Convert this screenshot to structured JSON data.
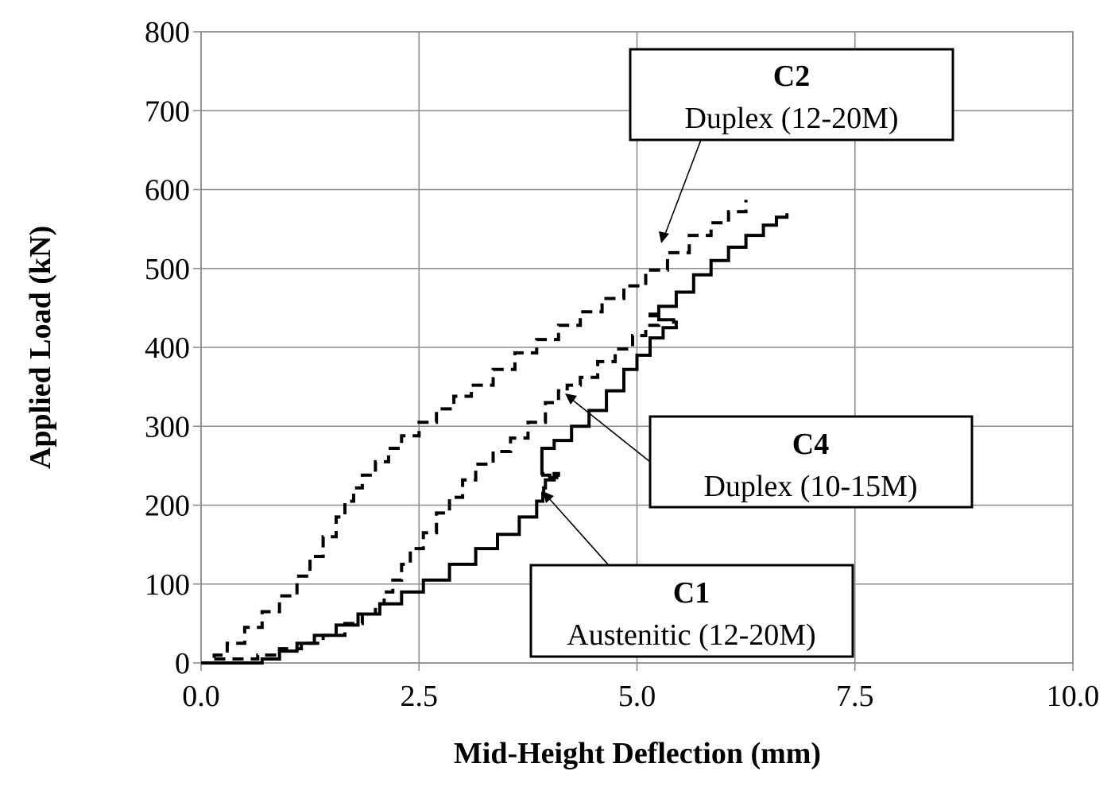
{
  "chart_data": {
    "type": "line",
    "title": "",
    "xlabel": "Mid-Height Deflection (mm)",
    "ylabel": "Applied Load (kN)",
    "xlim": [
      0,
      10
    ],
    "ylim": [
      0,
      800
    ],
    "xticks": [
      "0.0",
      "2.5",
      "5.0",
      "7.5",
      "10.0"
    ],
    "yticks": [
      "0",
      "100",
      "200",
      "300",
      "400",
      "500",
      "600",
      "700",
      "800"
    ],
    "grid": true,
    "series": [
      {
        "name": "C1",
        "description": "Austenitic (12-20M)",
        "style": "solid",
        "x": [
          0.1,
          0.45,
          0.7,
          0.9,
          1.1,
          1.3,
          1.55,
          1.8,
          2.05,
          2.3,
          2.55,
          2.85,
          3.15,
          3.4,
          3.65,
          3.85,
          3.92,
          3.93,
          3.95,
          4.05,
          4.1,
          4.08,
          4.0,
          3.92,
          3.91,
          4.05,
          4.25,
          4.45,
          4.65,
          4.85,
          5.0,
          5.15,
          5.3,
          5.45,
          5.42,
          5.25,
          5.15,
          5.25,
          5.45,
          5.65,
          5.85,
          6.05,
          6.25,
          6.45,
          6.6,
          6.72
        ],
        "y": [
          0,
          0,
          5,
          15,
          25,
          35,
          48,
          62,
          75,
          90,
          105,
          125,
          145,
          163,
          185,
          205,
          215,
          222,
          232,
          240,
          238,
          235,
          238,
          240,
          272,
          282,
          300,
          320,
          345,
          372,
          390,
          412,
          425,
          432,
          435,
          440,
          442,
          452,
          470,
          492,
          510,
          527,
          542,
          555,
          565,
          570
        ]
      },
      {
        "name": "C2",
        "description": "Duplex (12-20M)",
        "style": "dashed",
        "x": [
          0.0,
          0.15,
          0.3,
          0.5,
          0.7,
          0.9,
          1.1,
          1.25,
          1.4,
          1.55,
          1.65,
          1.75,
          1.85,
          2.0,
          2.15,
          2.3,
          2.5,
          2.7,
          2.9,
          3.1,
          3.35,
          3.6,
          3.85,
          4.1,
          4.35,
          4.6,
          4.85,
          5.1,
          5.35,
          5.6,
          5.85,
          6.05,
          6.25
        ],
        "y": [
          0,
          10,
          25,
          45,
          65,
          85,
          110,
          135,
          160,
          185,
          205,
          222,
          238,
          255,
          272,
          288,
          305,
          322,
          338,
          352,
          372,
          393,
          410,
          428,
          445,
          462,
          478,
          498,
          520,
          542,
          558,
          572,
          587
        ]
      },
      {
        "name": "C4",
        "description": "Duplex (10-15M)",
        "style": "dashed",
        "x": [
          0.15,
          0.4,
          0.65,
          0.9,
          1.15,
          1.4,
          1.65,
          1.85,
          2.0,
          2.1,
          2.2,
          2.3,
          2.4,
          2.55,
          2.7,
          2.85,
          3.0,
          3.15,
          3.35,
          3.55,
          3.75,
          3.95,
          4.1,
          4.2,
          4.35,
          4.55,
          4.75,
          4.95,
          5.1,
          5.25
        ],
        "y": [
          5,
          5,
          10,
          18,
          25,
          35,
          50,
          62,
          75,
          90,
          105,
          125,
          145,
          165,
          190,
          210,
          232,
          252,
          268,
          285,
          305,
          330,
          345,
          352,
          362,
          382,
          398,
          415,
          428,
          438
        ]
      }
    ],
    "annotations": [
      {
        "label": "C2",
        "text": "Duplex (12-20M)"
      },
      {
        "label": "C4",
        "text": "Duplex (10-15M)"
      },
      {
        "label": "C1",
        "text": "Austenitic (12-20M)"
      }
    ]
  }
}
